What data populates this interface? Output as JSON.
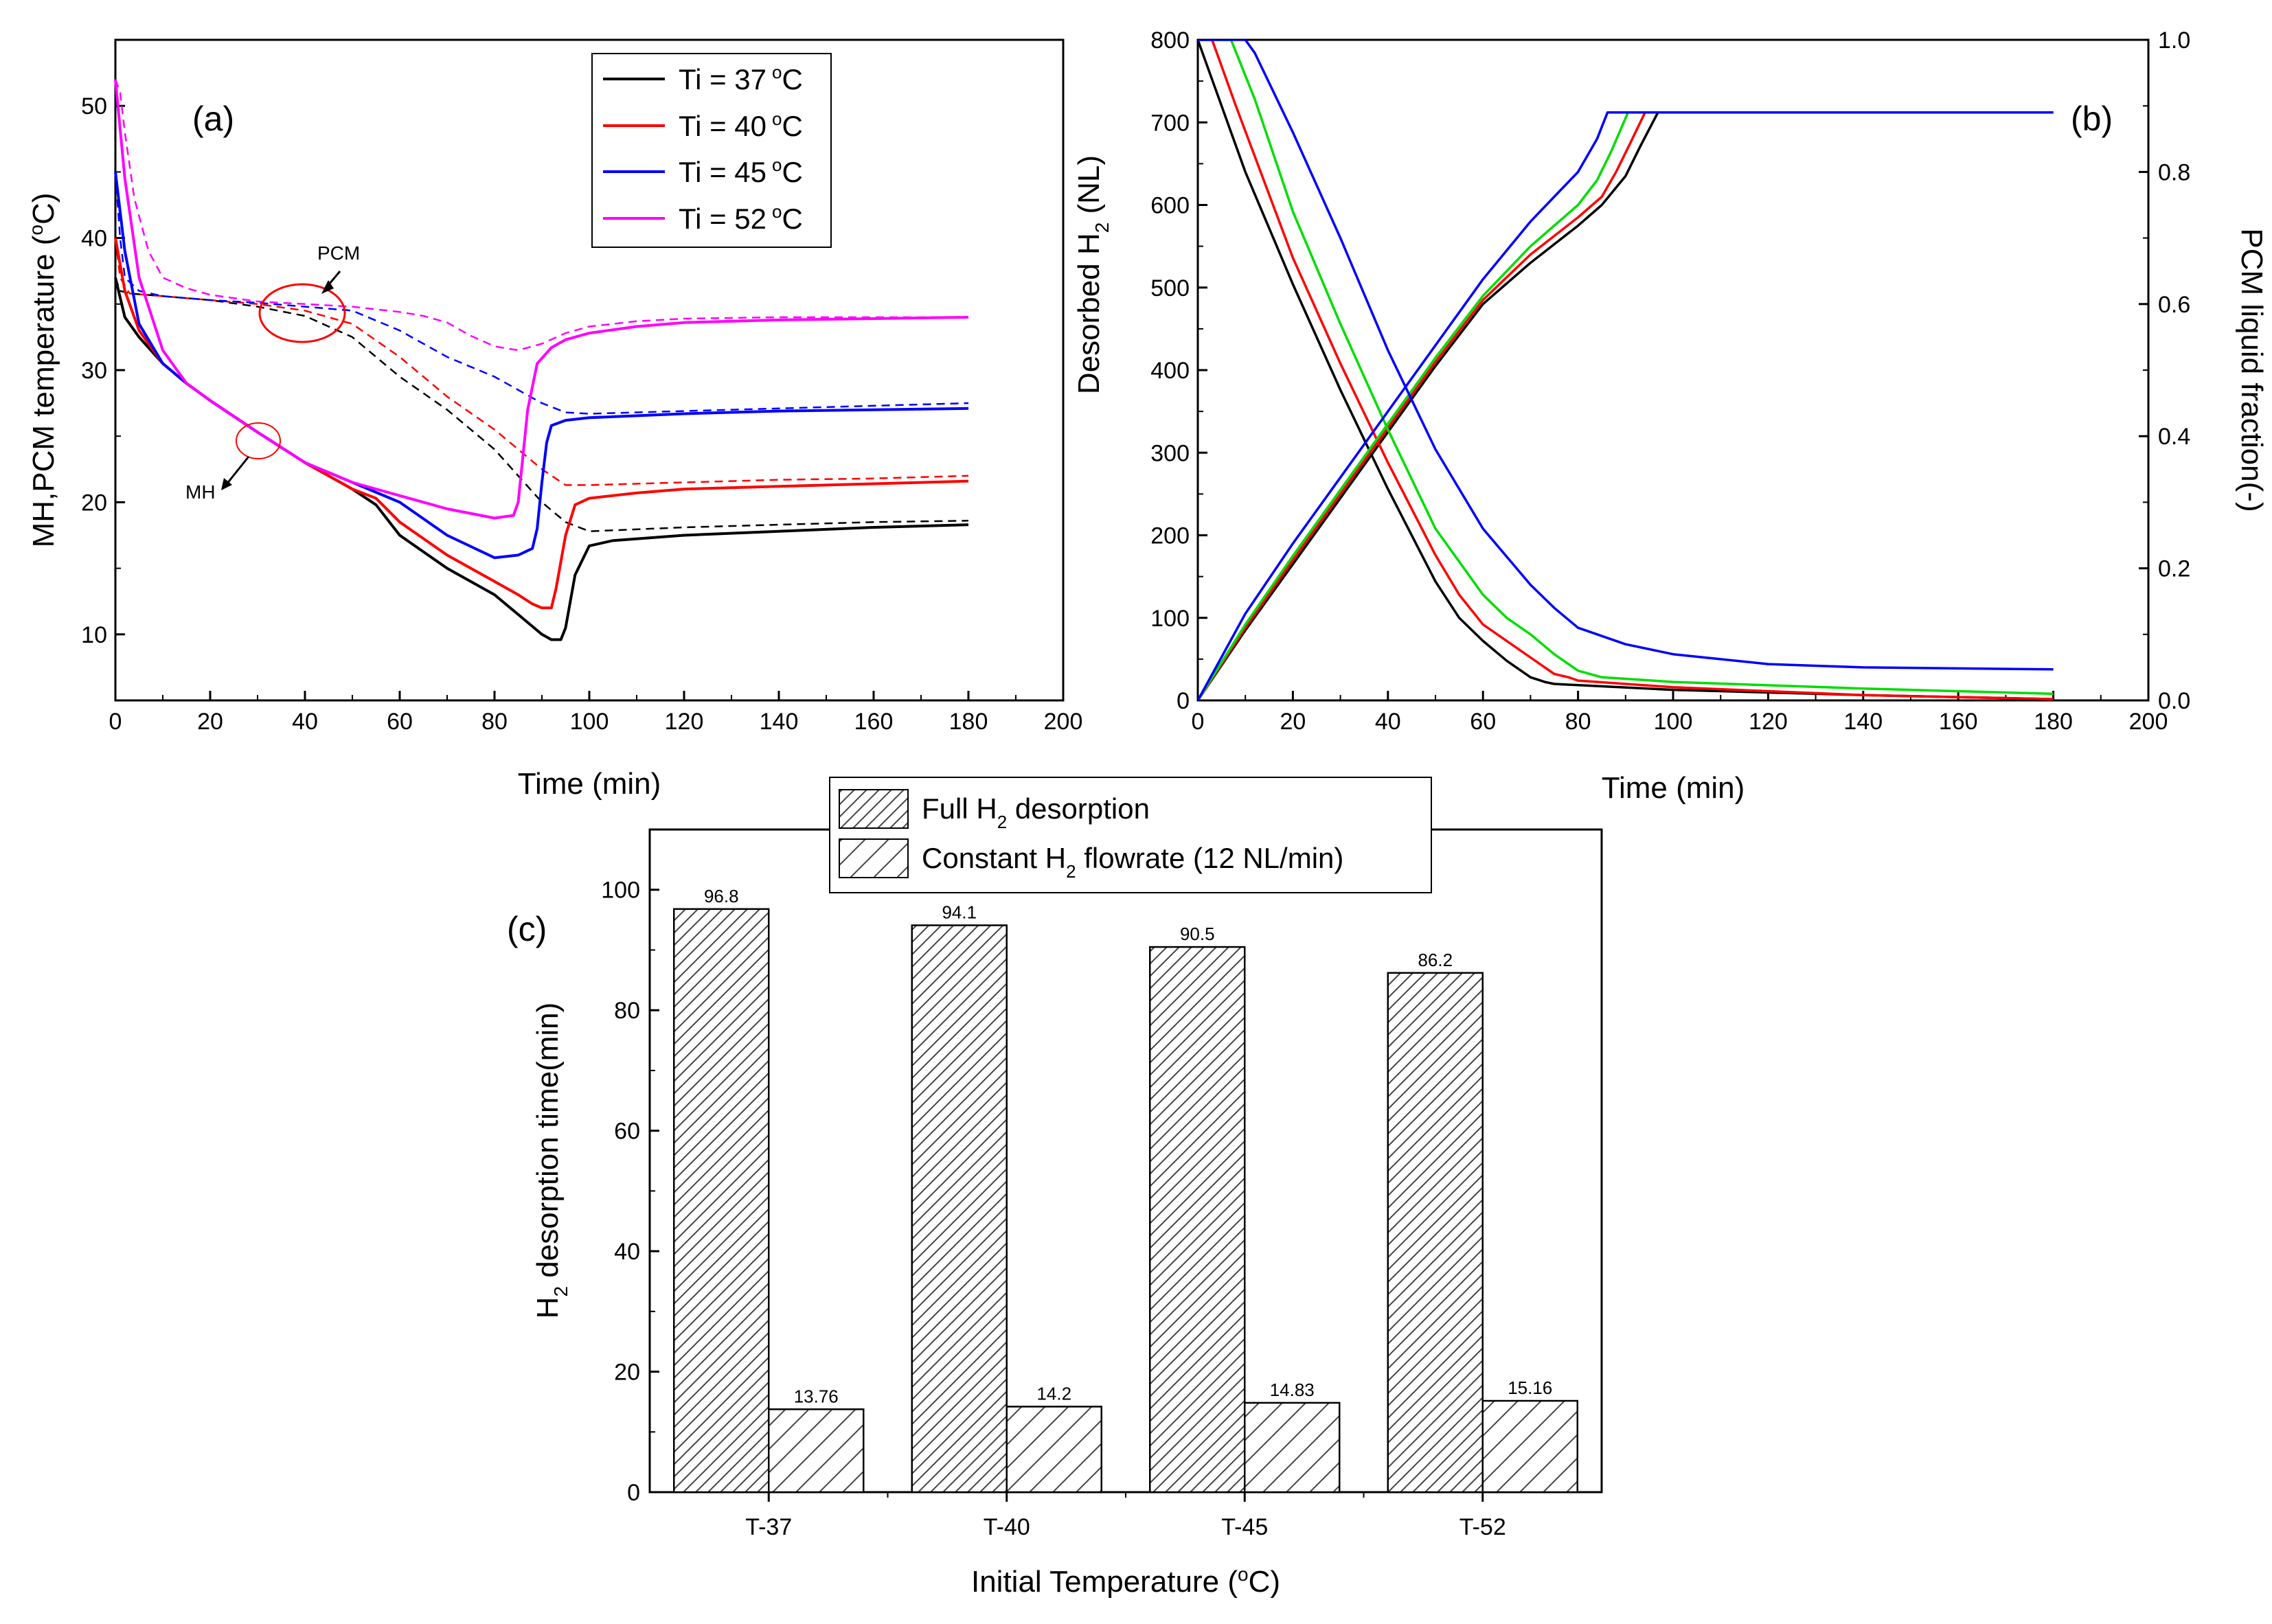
{
  "chart_data": [
    {
      "panel_label": "(a)",
      "type": "line",
      "xlabel": "Time (min)",
      "ylabel": "MH,PCM temperature (°C)",
      "ylabel_main": "MH,PCM temperature (",
      "ylabel_sup": "o",
      "ylabel_tail": "C)",
      "xlim": [
        0,
        200
      ],
      "ylim": [
        5,
        55
      ],
      "x_ticks": [
        0,
        20,
        40,
        60,
        80,
        100,
        120,
        140,
        160,
        180,
        200
      ],
      "y_ticks": [
        10,
        20,
        30,
        40,
        50
      ],
      "grid": false,
      "legend_position": "top-center",
      "annotations": [
        {
          "text": "PCM",
          "x": 40,
          "y": 35
        },
        {
          "text": "MH",
          "x": 30,
          "y": 24.5
        }
      ],
      "series": [
        {
          "name": "Ti = 37 °C",
          "legend_main": "Ti = 37",
          "legend_unit": "C",
          "color": "#000000",
          "style": "solid",
          "role": "MH",
          "x": [
            0,
            2,
            5,
            10,
            15,
            20,
            30,
            40,
            50,
            55,
            60,
            70,
            80,
            85,
            90,
            92,
            94,
            95,
            97,
            100,
            105,
            120,
            140,
            160,
            180
          ],
          "y": [
            37,
            34,
            32.5,
            30.5,
            29,
            27.7,
            25.3,
            23,
            21,
            19.8,
            17.5,
            15,
            13,
            11.5,
            10,
            9.6,
            9.6,
            10.5,
            14.5,
            16.7,
            17.1,
            17.5,
            17.8,
            18.1,
            18.3
          ]
        },
        {
          "name": "Ti = 37 °C",
          "color": "#000000",
          "style": "dashed",
          "role": "PCM",
          "x": [
            0,
            1,
            3,
            10,
            20,
            30,
            40,
            50,
            60,
            70,
            80,
            90,
            95,
            100,
            120,
            140,
            160,
            180
          ],
          "y": [
            37,
            36,
            35.8,
            35.6,
            35.3,
            34.8,
            34.1,
            32.5,
            29.5,
            27,
            24,
            20,
            18.5,
            17.8,
            18.1,
            18.3,
            18.5,
            18.6
          ]
        },
        {
          "name": "Ti = 40 °C",
          "legend_main": "Ti = 40",
          "legend_unit": "C",
          "color": "#ff0000",
          "style": "solid",
          "role": "MH",
          "x": [
            0,
            2,
            5,
            10,
            15,
            20,
            30,
            40,
            50,
            55,
            60,
            70,
            80,
            85,
            88,
            90,
            92,
            93,
            95,
            97,
            100,
            110,
            120,
            140,
            160,
            180
          ],
          "y": [
            40,
            36,
            33,
            30.5,
            29,
            27.7,
            25.3,
            23,
            21,
            20.3,
            18.5,
            16,
            14,
            13,
            12.3,
            12,
            12,
            13.5,
            17.5,
            19.8,
            20.3,
            20.7,
            21,
            21.2,
            21.4,
            21.6
          ]
        },
        {
          "name": "Ti = 40 °C",
          "color": "#ff0000",
          "style": "dashed",
          "role": "PCM",
          "x": [
            0,
            1,
            3,
            10,
            20,
            30,
            40,
            50,
            60,
            70,
            80,
            85,
            90,
            95,
            100,
            120,
            140,
            160,
            180
          ],
          "y": [
            40,
            37,
            35.8,
            35.6,
            35.3,
            35,
            34.5,
            33.5,
            31,
            28,
            25.5,
            24,
            22.5,
            21.3,
            21.3,
            21.5,
            21.7,
            21.8,
            22
          ]
        },
        {
          "name": "Ti = 45 °C",
          "legend_main": "Ti = 45",
          "legend_unit": "C",
          "color": "#0000ff",
          "style": "solid",
          "role": "MH",
          "x": [
            0,
            2,
            5,
            10,
            15,
            20,
            30,
            40,
            50,
            60,
            70,
            80,
            85,
            88,
            89,
            90,
            91,
            92,
            95,
            100,
            120,
            140,
            160,
            180
          ],
          "y": [
            45,
            39,
            33.5,
            30.5,
            29,
            27.7,
            25.3,
            23,
            21.5,
            20,
            17.5,
            15.8,
            16,
            16.5,
            18,
            21.5,
            24.5,
            25.8,
            26.2,
            26.4,
            26.7,
            26.9,
            27,
            27.1
          ]
        },
        {
          "name": "Ti = 45 °C",
          "color": "#0000ff",
          "style": "dashed",
          "role": "PCM",
          "x": [
            0,
            1,
            2,
            5,
            10,
            20,
            30,
            40,
            50,
            60,
            70,
            80,
            85,
            90,
            95,
            100,
            120,
            140,
            160,
            180
          ],
          "y": [
            45,
            40,
            37,
            36,
            35.6,
            35.3,
            35.1,
            34.8,
            34.5,
            33,
            31,
            29.5,
            28.5,
            27.5,
            26.8,
            26.7,
            26.9,
            27.1,
            27.3,
            27.5
          ]
        },
        {
          "name": "Ti = 52 °C",
          "legend_main": "Ti = 52",
          "legend_unit": "C",
          "color": "#ff00ff",
          "style": "solid",
          "role": "MH",
          "x": [
            0,
            2,
            5,
            10,
            15,
            20,
            30,
            40,
            50,
            60,
            70,
            80,
            84,
            85,
            86,
            87,
            89,
            92,
            95,
            100,
            110,
            120,
            140,
            160,
            180
          ],
          "y": [
            52,
            44.5,
            37,
            31.5,
            29,
            27.7,
            25.3,
            23,
            21.5,
            20.5,
            19.5,
            18.8,
            19,
            20,
            23.5,
            27,
            30.5,
            31.7,
            32.3,
            32.8,
            33.3,
            33.6,
            33.8,
            33.9,
            34
          ]
        },
        {
          "name": "Ti = 52 °C",
          "color": "#ff00ff",
          "style": "dashed",
          "role": "PCM",
          "x": [
            0,
            1,
            2,
            4,
            7,
            10,
            15,
            20,
            30,
            40,
            50,
            60,
            65,
            70,
            75,
            80,
            85,
            90,
            95,
            100,
            110,
            120,
            140,
            160,
            180
          ],
          "y": [
            52,
            51,
            48,
            43,
            39,
            37,
            36.2,
            35.7,
            35.2,
            35,
            34.8,
            34.4,
            34.1,
            33.6,
            32.6,
            31.8,
            31.5,
            32,
            32.8,
            33.3,
            33.7,
            33.9,
            34,
            34,
            34
          ]
        }
      ]
    },
    {
      "panel_label": "(b)",
      "type": "line",
      "xlabel": "Time (min)",
      "ylabel_left": "Desorbed H2 (NL)",
      "ylabel_left_main": "Desorbed H",
      "ylabel_left_sub": "2",
      "ylabel_left_tail": " (NL)",
      "ylabel_right": "PCM liquid fraction(-)",
      "xlim": [
        0,
        200
      ],
      "ylim_left": [
        0,
        800
      ],
      "ylim_right": [
        0,
        1.0
      ],
      "x_ticks": [
        0,
        20,
        40,
        60,
        80,
        100,
        120,
        140,
        160,
        180,
        200
      ],
      "y_ticks_left": [
        0,
        100,
        200,
        300,
        400,
        500,
        600,
        700,
        800
      ],
      "y_ticks_right": [
        "0.0",
        "0.2",
        "0.4",
        "0.6",
        "0.8",
        "1.0"
      ],
      "grid": false,
      "series": [
        {
          "color": "#000000",
          "axis": "left",
          "kind": "desorbed",
          "x": [
            0,
            10,
            20,
            30,
            40,
            50,
            60,
            70,
            80,
            85,
            90,
            93,
            96.8,
            100,
            180
          ],
          "y": [
            0,
            85,
            165,
            245,
            325,
            405,
            480,
            530,
            575,
            600,
            635,
            670,
            712,
            712,
            712
          ]
        },
        {
          "color": "#000000",
          "axis": "right",
          "kind": "liquid_fraction",
          "x": [
            0,
            5,
            10,
            20,
            30,
            40,
            50,
            55,
            60,
            65,
            70,
            73,
            75,
            100,
            140,
            180
          ],
          "y": [
            1.0,
            0.9,
            0.8,
            0.63,
            0.47,
            0.32,
            0.18,
            0.125,
            0.09,
            0.06,
            0.035,
            0.028,
            0.025,
            0.016,
            0.008,
            0.002
          ]
        },
        {
          "color": "#ff0000",
          "axis": "left",
          "kind": "desorbed",
          "x": [
            0,
            10,
            20,
            30,
            40,
            50,
            60,
            70,
            80,
            85,
            88,
            91,
            94.1,
            97,
            180
          ],
          "y": [
            0,
            88,
            170,
            250,
            330,
            410,
            485,
            540,
            585,
            610,
            640,
            675,
            712,
            712,
            712
          ]
        },
        {
          "color": "#ff0000",
          "axis": "right",
          "kind": "liquid_fraction",
          "x": [
            0,
            3,
            8,
            20,
            30,
            40,
            50,
            55,
            60,
            65,
            70,
            75,
            78,
            80,
            100,
            140,
            180
          ],
          "y": [
            1.0,
            1.0,
            0.9,
            0.67,
            0.51,
            0.36,
            0.22,
            0.16,
            0.115,
            0.09,
            0.065,
            0.04,
            0.035,
            0.03,
            0.02,
            0.008,
            0.002
          ]
        },
        {
          "color": "#00dd00",
          "axis": "left",
          "kind": "desorbed",
          "x": [
            0,
            10,
            20,
            30,
            40,
            50,
            60,
            70,
            80,
            84,
            87,
            90.5,
            94,
            180
          ],
          "y": [
            0,
            92,
            175,
            255,
            335,
            415,
            490,
            550,
            600,
            630,
            665,
            712,
            712,
            712
          ]
        },
        {
          "color": "#00dd00",
          "axis": "right",
          "kind": "liquid_fraction",
          "x": [
            0,
            7,
            12,
            20,
            30,
            40,
            50,
            60,
            65,
            70,
            75,
            80,
            85,
            100,
            140,
            180
          ],
          "y": [
            1.0,
            1.0,
            0.91,
            0.74,
            0.57,
            0.41,
            0.26,
            0.16,
            0.125,
            0.1,
            0.07,
            0.045,
            0.035,
            0.028,
            0.018,
            0.01
          ]
        },
        {
          "color": "#0000ff",
          "axis": "left",
          "kind": "desorbed",
          "x": [
            0,
            10,
            20,
            30,
            40,
            50,
            60,
            70,
            80,
            84,
            86.2,
            90,
            180
          ],
          "y": [
            0,
            105,
            190,
            270,
            350,
            430,
            510,
            580,
            640,
            680,
            712,
            712,
            712
          ]
        },
        {
          "color": "#0000ff",
          "axis": "right",
          "kind": "liquid_fraction",
          "x": [
            0,
            10,
            12,
            20,
            30,
            40,
            50,
            60,
            70,
            75,
            80,
            90,
            100,
            120,
            140,
            180
          ],
          "y": [
            1.0,
            1.0,
            0.98,
            0.86,
            0.7,
            0.53,
            0.38,
            0.26,
            0.175,
            0.14,
            0.11,
            0.085,
            0.07,
            0.055,
            0.05,
            0.047
          ]
        }
      ]
    },
    {
      "panel_label": "(c)",
      "type": "bar",
      "xlabel": "Initial Temperature (°C)",
      "xlabel_main": "Initial Temperature (",
      "xlabel_sup": "o",
      "xlabel_tail": "C)",
      "ylabel": "H2 desorption time(min)",
      "ylabel_main": "H",
      "ylabel_sub": "2",
      "ylabel_tail": " desorption time(min)",
      "ylim": [
        0,
        110
      ],
      "y_ticks": [
        0,
        20,
        40,
        60,
        80,
        100
      ],
      "categories": [
        "T-37",
        "T-40",
        "T-45",
        "T-52"
      ],
      "legend_position": "top",
      "series": [
        {
          "name": "Full H2 desorption",
          "legend_main": "Full H",
          "legend_sub": "2",
          "legend_tail": " desorption",
          "hatch": "dense",
          "values": [
            96.8,
            94.1,
            90.5,
            86.2
          ],
          "labels": [
            "96.8",
            "94.1",
            "90.5",
            "86.2"
          ]
        },
        {
          "name": "Constant H2 flowrate (12 NL/min)",
          "legend_main": "Constant H",
          "legend_sub": "2",
          "legend_tail": " flowrate (12 NL/min)",
          "hatch": "sparse",
          "values": [
            13.76,
            14.2,
            14.83,
            15.16
          ],
          "labels": [
            "13.76",
            "14.2",
            "14.83",
            "15.16"
          ]
        }
      ]
    }
  ]
}
